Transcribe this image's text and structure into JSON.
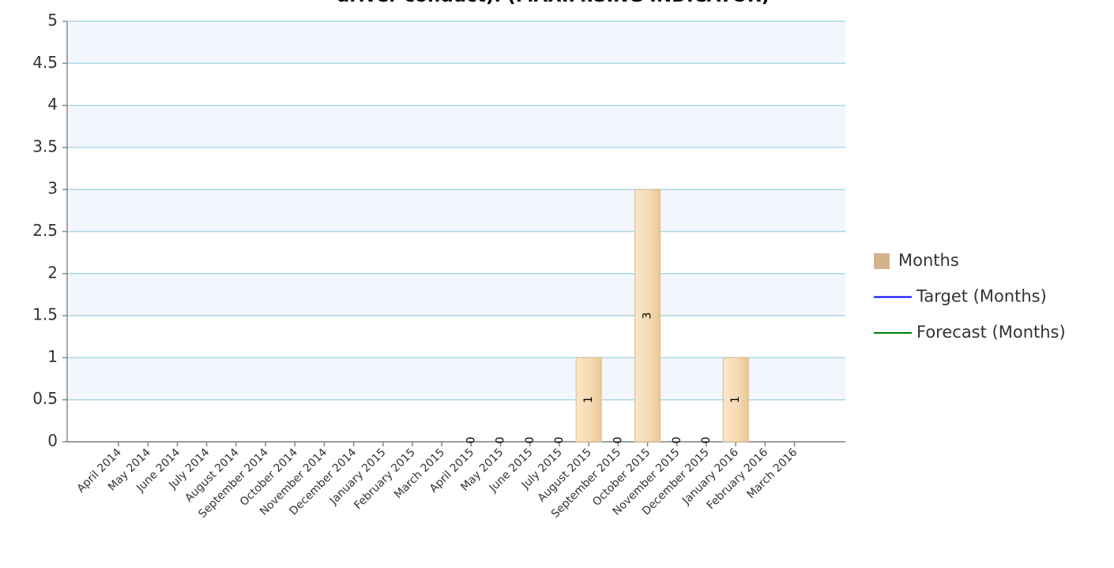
{
  "chart_data": {
    "type": "bar",
    "title": "driver conduct). (MAXIMISING INDICATOR)",
    "categories": [
      "April 2014",
      "May 2014",
      "June 2014",
      "July 2014",
      "August 2014",
      "September 2014",
      "October 2014",
      "November 2014",
      "December 2014",
      "January 2015",
      "February 2015",
      "March 2015",
      "April 2015",
      "May 2015",
      "June 2015",
      "July 2015",
      "August 2015",
      "September 2015",
      "October 2015",
      "November 2015",
      "December 2015",
      "January 2016",
      "February 2016",
      "March 2016"
    ],
    "series": [
      {
        "name": "Months",
        "color": "#d2b48c",
        "values": [
          null,
          null,
          null,
          null,
          null,
          null,
          null,
          null,
          null,
          null,
          null,
          null,
          0,
          0,
          0,
          0,
          1,
          0,
          3,
          0,
          0,
          1,
          null,
          null
        ]
      },
      {
        "name": "Target (Months)",
        "color": "#0000ff",
        "values": [
          null,
          null,
          null,
          null,
          null,
          null,
          null,
          null,
          null,
          null,
          null,
          null,
          null,
          null,
          null,
          null,
          null,
          null,
          null,
          null,
          null,
          null,
          null,
          null
        ]
      },
      {
        "name": "Forecast (Months)",
        "color": "#008000",
        "values": [
          null,
          null,
          null,
          null,
          null,
          null,
          null,
          null,
          null,
          null,
          null,
          null,
          null,
          null,
          null,
          null,
          null,
          null,
          null,
          null,
          null,
          null,
          null,
          null
        ]
      }
    ],
    "ylim": [
      0,
      5
    ],
    "yticks": [
      0,
      0.5,
      1,
      1.5,
      2,
      2.5,
      3,
      3.5,
      4,
      4.5,
      5
    ],
    "grid": true
  }
}
